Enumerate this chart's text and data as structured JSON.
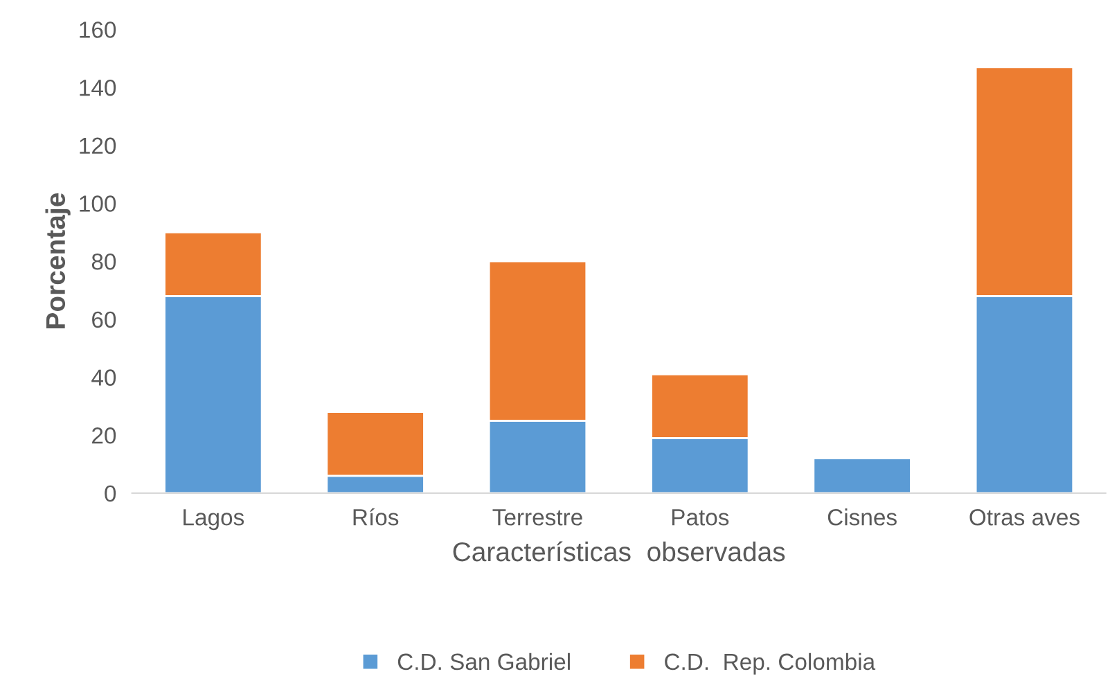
{
  "chart_data": {
    "type": "bar",
    "stacked": true,
    "xlabel": "Características  observadas",
    "ylabel": "Porcentaje",
    "categories": [
      "Lagos",
      "Ríos",
      "Terrestre",
      "Patos",
      "Cisnes",
      "Otras aves"
    ],
    "series": [
      {
        "name": "C.D. San Gabriel",
        "color": "#5b9bd5",
        "values": [
          68,
          6,
          25,
          19,
          12,
          68
        ]
      },
      {
        "name": "C.D.  Rep. Colombia",
        "color": "#ed7d31",
        "values": [
          22,
          22,
          55,
          22,
          null,
          79
        ]
      }
    ],
    "ylim": [
      0,
      160
    ],
    "yticks": [
      0,
      20,
      40,
      60,
      80,
      100,
      120,
      140,
      160
    ],
    "grid": false,
    "legend": "bottom"
  }
}
